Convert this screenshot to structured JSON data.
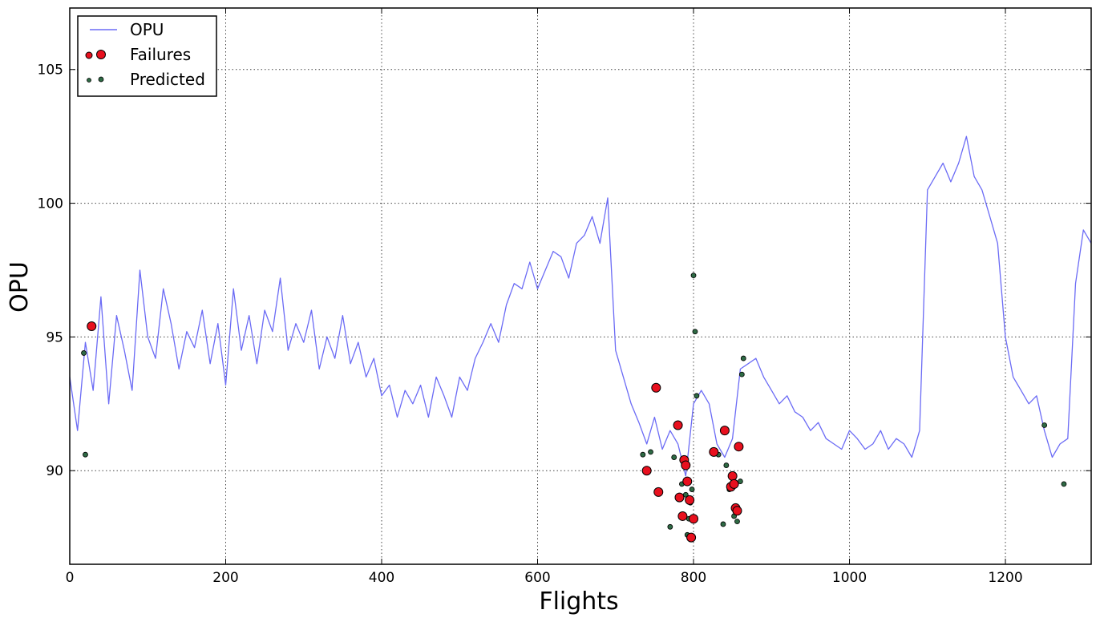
{
  "chart_data": {
    "type": "line",
    "title": "",
    "xlabel": "Flights",
    "ylabel": "OPU",
    "xlim": [
      0,
      1310
    ],
    "ylim": [
      86.5,
      107.3
    ],
    "x_ticks": [
      0,
      200,
      400,
      600,
      800,
      1000,
      1200
    ],
    "y_ticks": [
      90,
      95,
      100,
      105
    ],
    "grid": true,
    "legend_position": "top-left",
    "colors": {
      "opu": "#6b6bf5",
      "failures": "#e8101e",
      "predicted": "#2e6a44"
    },
    "series": [
      {
        "name": "OPU",
        "kind": "line",
        "x": [
          0,
          10,
          20,
          30,
          40,
          50,
          60,
          70,
          80,
          90,
          100,
          110,
          120,
          130,
          140,
          150,
          160,
          170,
          180,
          190,
          200,
          210,
          220,
          230,
          240,
          250,
          260,
          270,
          280,
          290,
          300,
          310,
          320,
          330,
          340,
          350,
          360,
          370,
          380,
          390,
          400,
          410,
          420,
          430,
          440,
          450,
          460,
          470,
          480,
          490,
          500,
          510,
          520,
          530,
          540,
          550,
          560,
          570,
          580,
          590,
          600,
          610,
          620,
          630,
          640,
          650,
          660,
          670,
          680,
          690,
          700,
          710,
          720,
          730,
          740,
          750,
          760,
          770,
          780,
          790,
          800,
          810,
          820,
          830,
          840,
          850,
          860,
          870,
          880,
          890,
          900,
          910,
          920,
          930,
          940,
          950,
          960,
          970,
          980,
          990,
          1000,
          1010,
          1020,
          1030,
          1040,
          1050,
          1060,
          1070,
          1080,
          1090,
          1100,
          1110,
          1120,
          1130,
          1140,
          1150,
          1160,
          1170,
          1180,
          1190,
          1200,
          1210,
          1220,
          1230,
          1240,
          1250,
          1260,
          1270,
          1280,
          1290,
          1300,
          1310
        ],
        "y": [
          93.5,
          91.5,
          94.8,
          93.0,
          96.5,
          92.5,
          95.8,
          94.5,
          93.0,
          97.5,
          95.0,
          94.2,
          96.8,
          95.5,
          93.8,
          95.2,
          94.6,
          96.0,
          94.0,
          95.5,
          93.2,
          96.8,
          94.5,
          95.8,
          94.0,
          96.0,
          95.2,
          97.2,
          94.5,
          95.5,
          94.8,
          96.0,
          93.8,
          95.0,
          94.2,
          95.8,
          94.0,
          94.8,
          93.5,
          94.2,
          92.8,
          93.2,
          92.0,
          93.0,
          92.5,
          93.2,
          92.0,
          93.5,
          92.8,
          92.0,
          93.5,
          93.0,
          94.2,
          94.8,
          95.5,
          94.8,
          96.2,
          97.0,
          96.8,
          97.8,
          96.8,
          97.5,
          98.2,
          98.0,
          97.2,
          98.5,
          98.8,
          99.5,
          98.5,
          100.2,
          94.5,
          93.5,
          92.5,
          91.8,
          91.0,
          92.0,
          90.8,
          91.5,
          91.0,
          89.8,
          92.5,
          93.0,
          92.5,
          91.0,
          90.5,
          91.2,
          93.8,
          94.0,
          94.2,
          93.5,
          93.0,
          92.5,
          92.8,
          92.2,
          92.0,
          91.5,
          91.8,
          91.2,
          91.0,
          90.8,
          91.5,
          91.2,
          90.8,
          91.0,
          91.5,
          90.8,
          91.2,
          91.0,
          90.5,
          91.5,
          100.5,
          101.0,
          101.5,
          100.8,
          101.5,
          102.5,
          101.0,
          100.5,
          99.5,
          98.5,
          95.0,
          93.5,
          93.0,
          92.5,
          92.8,
          91.5,
          90.5,
          91.0,
          91.2,
          97.0,
          99.0,
          98.5
        ]
      },
      {
        "name": "Failures",
        "kind": "scatter",
        "x": [
          28,
          740,
          752,
          755,
          780,
          782,
          786,
          788,
          790,
          792,
          795,
          797,
          800,
          826,
          840,
          848,
          850,
          852,
          854,
          856,
          858
        ],
        "y": [
          95.4,
          90.0,
          93.1,
          89.2,
          91.7,
          89.0,
          88.3,
          90.4,
          90.2,
          89.6,
          88.9,
          87.5,
          88.2,
          90.7,
          91.5,
          89.4,
          89.8,
          89.5,
          88.6,
          88.5,
          90.9
        ]
      },
      {
        "name": "Predicted",
        "kind": "scatter",
        "x": [
          18,
          20,
          735,
          745,
          770,
          775,
          785,
          790,
          792,
          794,
          796,
          798,
          800,
          802,
          804,
          832,
          838,
          842,
          846,
          852,
          856,
          860,
          862,
          864,
          1275,
          1250
        ],
        "y": [
          94.4,
          90.6,
          90.6,
          90.7,
          87.9,
          90.5,
          89.5,
          89.1,
          87.6,
          88.2,
          88.8,
          89.3,
          97.3,
          95.2,
          92.8,
          90.6,
          88.0,
          90.2,
          89.3,
          88.3,
          88.1,
          89.6,
          93.6,
          94.2,
          89.5,
          91.7
        ]
      }
    ]
  }
}
